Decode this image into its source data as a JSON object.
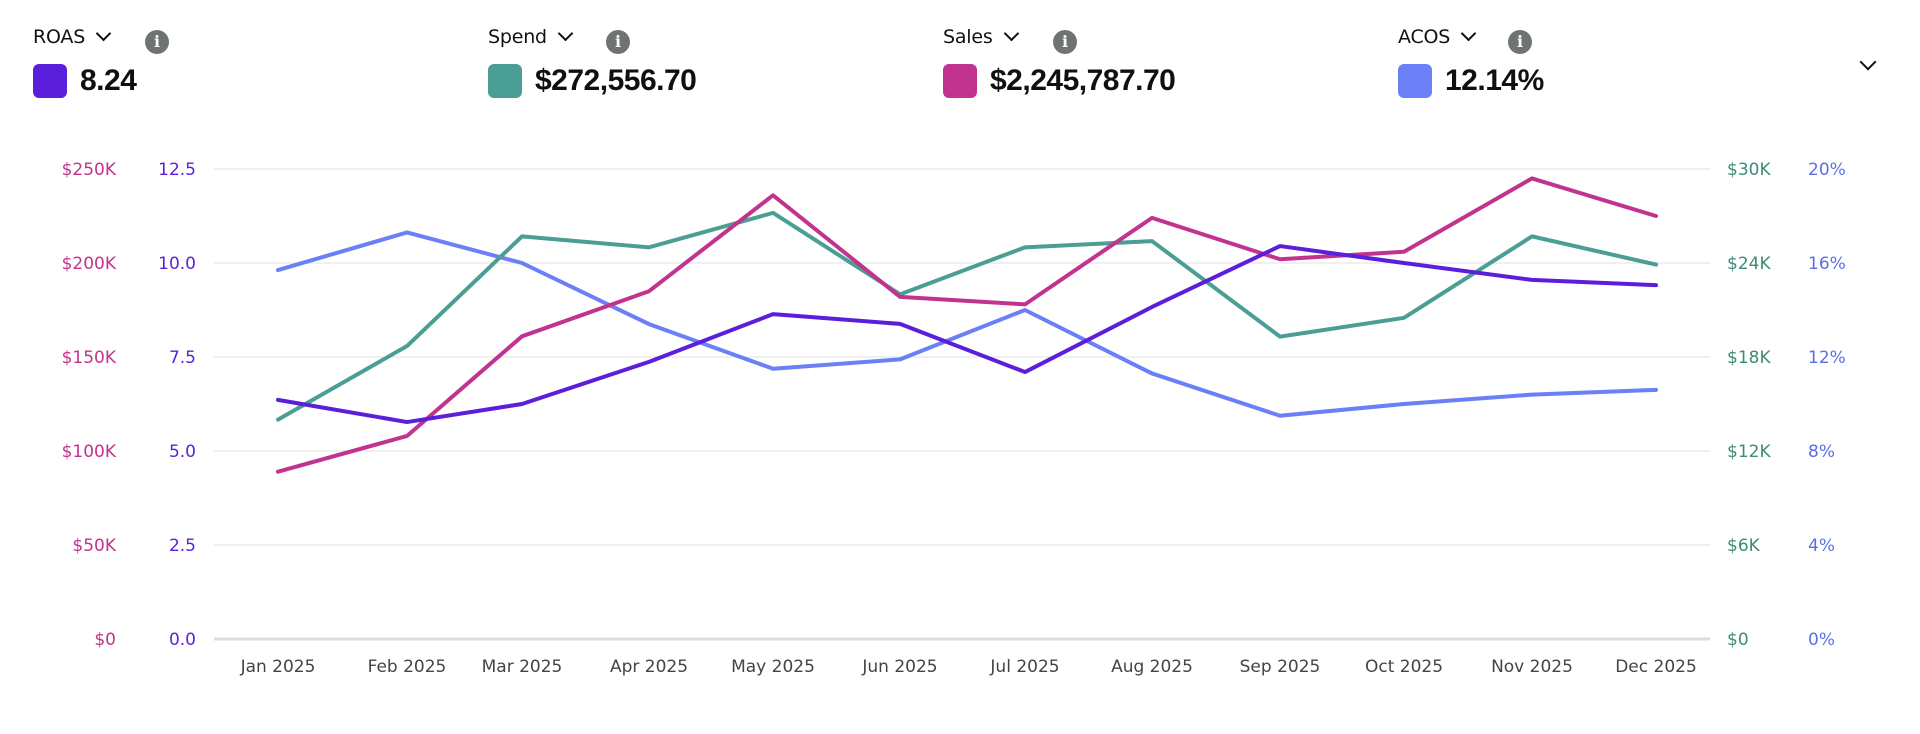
{
  "metrics": [
    {
      "label": "ROAS",
      "value": "8.24",
      "color": "#5B1FDB",
      "info_icon": "info-icon",
      "dropdown_icon": "chevron-down-icon"
    },
    {
      "label": "Spend",
      "value": "$272,556.70",
      "color": "#4A9E94",
      "info_icon": "info-icon",
      "dropdown_icon": "chevron-down-icon"
    },
    {
      "label": "Sales",
      "value": "$2,245,787.70",
      "color": "#C2338F",
      "info_icon": "info-icon",
      "dropdown_icon": "chevron-down-icon"
    },
    {
      "label": "ACOS",
      "value": "12.14%",
      "color": "#6B7FF7",
      "info_icon": "info-icon",
      "dropdown_icon": "chevron-down-icon"
    }
  ],
  "info_glyph": "i",
  "collapse_icon": "chevron-down-icon",
  "chart_data": {
    "type": "line",
    "title": "",
    "xlabel": "",
    "grid": true,
    "legend": "top (metric cards)",
    "categories": [
      "Jan 2025",
      "Feb 2025",
      "Mar 2025",
      "Apr 2025",
      "May 2025",
      "Jun 2025",
      "Jul 2025",
      "Aug 2025",
      "Sep 2025",
      "Oct 2025",
      "Nov 2025",
      "Dec 2025"
    ],
    "axes": {
      "left_outer": {
        "series": "Sales",
        "ylim": [
          0,
          250000
        ],
        "ticks": [
          "$0",
          "$50K",
          "$100K",
          "$150K",
          "$200K",
          "$250K"
        ],
        "color": "#C2338F"
      },
      "left_inner": {
        "series": "ROAS",
        "ylim": [
          0,
          12.5
        ],
        "ticks": [
          "0.0",
          "2.5",
          "5.0",
          "7.5",
          "10.0",
          "12.5"
        ],
        "color": "#5B1FDB"
      },
      "right_inner": {
        "series": "Spend",
        "ylim": [
          0,
          30000
        ],
        "ticks": [
          "$0",
          "$6K",
          "$12K",
          "$18K",
          "$24K",
          "$30K"
        ],
        "color": "#3F8A78"
      },
      "right_outer": {
        "series": "ACOS",
        "ylim": [
          0,
          20
        ],
        "ticks": [
          "0%",
          "4%",
          "8%",
          "12%",
          "16%",
          "20%"
        ],
        "color": "#5A6FE6"
      }
    },
    "series": [
      {
        "name": "ROAS",
        "axis": "left_inner",
        "color": "#5B1FDB",
        "values": [
          6.36,
          5.77,
          6.25,
          7.37,
          8.64,
          8.38,
          7.1,
          8.83,
          10.45,
          10.0,
          9.55,
          9.41
        ]
      },
      {
        "name": "Spend",
        "axis": "right_inner",
        "color": "#4A9E94",
        "values": [
          14000,
          18700,
          25700,
          25000,
          27200,
          22000,
          25000,
          25400,
          19300,
          20500,
          25700,
          23900
        ]
      },
      {
        "name": "Sales",
        "axis": "left_outer",
        "color": "#C2338F",
        "values": [
          89000,
          108000,
          161000,
          185000,
          236000,
          182000,
          178000,
          224000,
          202000,
          206000,
          245000,
          225000
        ]
      },
      {
        "name": "ACOS",
        "axis": "right_outer",
        "color": "#6B7FF7",
        "values": [
          15.7,
          17.3,
          16.0,
          13.4,
          11.5,
          11.9,
          14.0,
          11.3,
          9.5,
          10.0,
          10.4,
          10.6
        ]
      }
    ]
  }
}
